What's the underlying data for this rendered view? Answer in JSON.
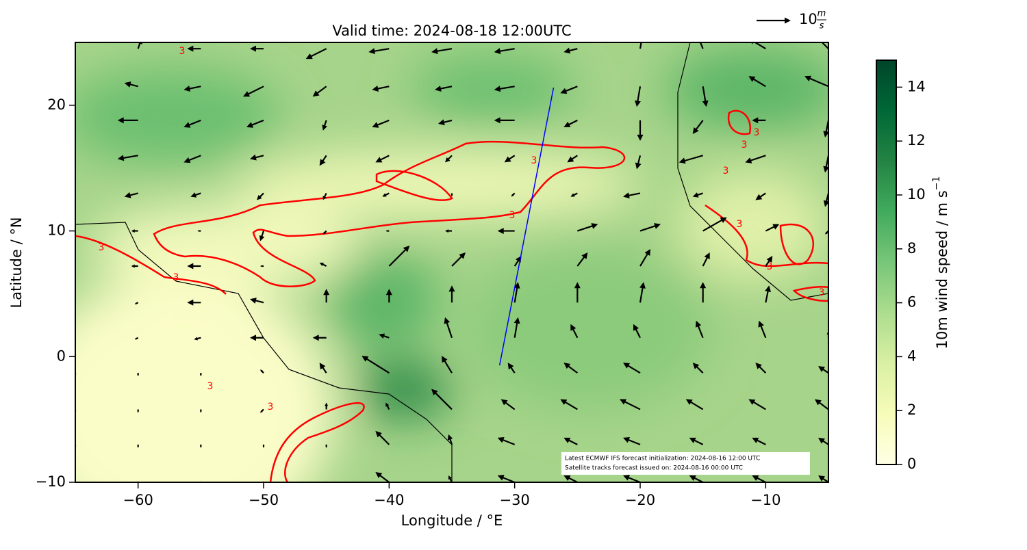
{
  "chart_data": {
    "type": "quiver",
    "title": "Valid time: 2024-08-18 12:00UTC",
    "xlabel": "Longitude / °E",
    "ylabel": "Latitude / °N",
    "xlim": [
      -65,
      -5
    ],
    "ylim": [
      -10,
      25
    ],
    "xticks": [
      {
        "value": -60,
        "label": "−60"
      },
      {
        "value": -50,
        "label": "−50"
      },
      {
        "value": -40,
        "label": "−40"
      },
      {
        "value": -30,
        "label": "−30"
      },
      {
        "value": -20,
        "label": "−20"
      },
      {
        "value": -10,
        "label": "−10"
      }
    ],
    "yticks": [
      {
        "value": -10,
        "label": "−10"
      },
      0,
      10,
      20
    ],
    "colorbar": {
      "label": "10m wind speed / m s",
      "label_exponent": "−1",
      "lim": [
        0,
        15
      ],
      "ticks": [
        0,
        2,
        4,
        6,
        8,
        10,
        12,
        14
      ],
      "cmap": "YlGn"
    },
    "quiver_key": {
      "value": 10,
      "unit_numerator": "m",
      "unit_denominator": "s",
      "color": "#000000"
    },
    "contour_level": 3,
    "contour_color": "#ff0000",
    "track": {
      "lon": [
        -31.2,
        -26.9
      ],
      "lat": [
        -0.7,
        21.4
      ],
      "color": "#0000ff"
    },
    "annotation": [
      "Latest ECMWF IFS forecast initialization: 2024-08-16 12:00 UTC",
      "Satellite tracks forecast issued on: 2024-08-16 00:00 UTC"
    ],
    "wind": {
      "lons": [
        -65,
        -60,
        -55,
        -50,
        -45,
        -40,
        -35,
        -30,
        -25,
        -20,
        -15,
        -10,
        -5
      ],
      "lats": [
        24.5,
        21.5,
        18.8,
        16,
        13,
        10,
        7.2,
        4.3,
        1.5,
        -1.3,
        -4.2,
        -7,
        -10
      ],
      "u": [
        [
          -5,
          1,
          -4,
          -4,
          -6,
          -6,
          -6,
          -6,
          -4,
          1,
          -2,
          -5,
          -4
        ],
        [
          -4,
          -4,
          -5,
          -6,
          -4,
          -5,
          -5,
          -6,
          -5,
          -1,
          1,
          -5,
          -7
        ],
        [
          -4,
          -6,
          -5,
          -5,
          -1,
          -5,
          -4,
          -6,
          -4,
          0,
          -3,
          -4,
          -1
        ],
        [
          -4,
          -6,
          -5,
          -4,
          -2,
          -4,
          -2,
          -3,
          -3,
          -1,
          -7,
          -6,
          -1
        ],
        [
          -4,
          -4,
          -3,
          -2,
          -1,
          -2,
          0,
          -1,
          -2,
          -5,
          -3,
          -3,
          -1
        ],
        [
          -6,
          -2,
          -1,
          -1,
          -1,
          -1,
          -2,
          -5,
          6,
          6,
          7,
          4,
          -1
        ],
        [
          -1,
          -2,
          -4,
          -1,
          -2,
          6,
          4,
          2,
          3,
          3,
          2,
          2,
          1
        ],
        [
          -1,
          -1,
          -4,
          -4,
          0,
          0,
          0,
          1,
          0,
          1,
          0,
          1,
          1
        ],
        [
          0,
          -1,
          -2,
          -4,
          -4,
          -3,
          -2,
          1,
          -2,
          -2,
          -2,
          -2,
          0
        ],
        [
          0,
          0,
          0,
          -1,
          -2,
          -8,
          -3,
          -2,
          -4,
          -5,
          -3,
          -3,
          -3
        ],
        [
          0,
          0,
          0,
          -1,
          0,
          -1,
          -6,
          -4,
          -5,
          -6,
          -5,
          -5,
          -4
        ],
        [
          0,
          0,
          0,
          0,
          0,
          -4,
          -1,
          -5,
          -4,
          -5,
          -4,
          -4,
          -3
        ],
        [
          0,
          0,
          0,
          0,
          0,
          -4,
          -1,
          -5,
          -4,
          -5,
          -4,
          -4,
          -3
        ]
      ],
      "v": [
        [
          1,
          3,
          0,
          0,
          -3,
          -1,
          -1,
          -1,
          -1,
          6,
          5,
          3,
          4
        ],
        [
          2,
          1,
          -1,
          -3,
          -3,
          -1,
          -1,
          -1,
          -2,
          -6,
          -6,
          3,
          3
        ],
        [
          -1,
          0,
          -2,
          -2,
          -3,
          -2,
          -1,
          0,
          -2,
          -6,
          -4,
          0,
          -5
        ],
        [
          -2,
          -1,
          -2,
          -1,
          -3,
          -2,
          -2,
          -2,
          -2,
          -4,
          -2,
          -2,
          -5
        ],
        [
          -2,
          -1,
          -1,
          -2,
          -2,
          -1,
          -1,
          -1,
          -1,
          -1,
          -1,
          -2,
          -4
        ],
        [
          -1,
          0,
          0,
          -3,
          -1,
          0,
          0,
          0,
          2,
          2,
          4,
          2,
          -1
        ],
        [
          0,
          0,
          0,
          0,
          1,
          6,
          4,
          3,
          4,
          5,
          4,
          3,
          3
        ],
        [
          0,
          -0.5,
          0,
          1,
          4,
          4,
          5,
          6,
          6,
          6,
          6,
          5,
          5
        ],
        [
          -0.5,
          -0.5,
          -0.5,
          0,
          0,
          1,
          6,
          6,
          4,
          4,
          5,
          5,
          2
        ],
        [
          -1,
          -1,
          -1,
          1,
          3,
          5,
          5,
          3,
          3,
          3,
          3,
          3,
          2
        ],
        [
          -1,
          -1,
          -1,
          -1,
          2,
          2,
          6,
          3,
          3,
          3,
          3,
          3,
          3
        ],
        [
          -1,
          -1,
          -1,
          -1,
          -1,
          4,
          3,
          2,
          2,
          2,
          2,
          2,
          2
        ],
        [
          0,
          0,
          0,
          0,
          0,
          3,
          2,
          2,
          2,
          2,
          2,
          2,
          2
        ]
      ]
    }
  }
}
